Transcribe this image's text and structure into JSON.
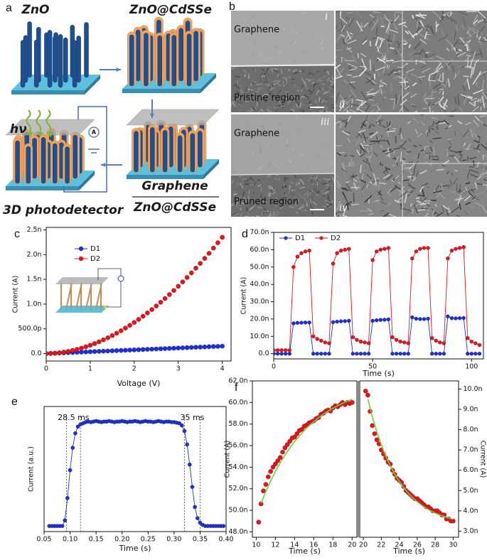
{
  "figure_a": {
    "panel": "a",
    "zno": "ZnO",
    "zno_cdsse": "ZnO@CdSSe",
    "hv": "hν",
    "ammeter": "A",
    "device": "3D photodetector",
    "graphene": "Graphene",
    "composite": "ZnO@CdSSe"
  },
  "figure_b": {
    "panel": "b",
    "top_left": {
      "layer": "Graphene",
      "index": "i",
      "region": "Pristine region"
    },
    "top_right": {
      "index": "ii"
    },
    "bottom_left": {
      "layer": "Graphene",
      "index": "iii",
      "region": "Pruned region"
    },
    "bottom_right": {
      "index": "iv"
    }
  },
  "chart_data": [
    {
      "panel": "c",
      "type": "line",
      "xlabel": "Voltage (V)",
      "ylabel": "Current (A)",
      "legend": "upper left",
      "legend_layout": "vertical",
      "xlim": [
        0,
        4.2
      ],
      "ylim": [
        -1.5e-10,
        2.55e-09
      ],
      "xticks": [
        0,
        1,
        2,
        3,
        4
      ],
      "yticks": [
        {
          "value": 0,
          "label": "0.0"
        },
        {
          "value": 5e-10,
          "label": "500.0p"
        },
        {
          "value": 1e-09,
          "label": "1.0n"
        },
        {
          "value": 1.5e-09,
          "label": "1.5n"
        },
        {
          "value": 2e-09,
          "label": "2.0n"
        },
        {
          "value": 2.5e-09,
          "label": "2.5n"
        }
      ],
      "x": [
        0,
        0.1,
        0.2,
        0.3,
        0.4,
        0.5,
        0.6,
        0.7,
        0.8,
        0.9,
        1,
        1.1,
        1.2,
        1.3,
        1.4,
        1.5,
        1.6,
        1.7,
        1.8,
        1.9,
        2,
        2.1,
        2.2,
        2.3,
        2.4,
        2.5,
        2.6,
        2.7,
        2.8,
        2.9,
        3,
        3.1,
        3.2,
        3.3,
        3.4,
        3.5,
        3.6,
        3.7,
        3.8,
        3.9,
        4
      ],
      "series": [
        {
          "name": "D1",
          "color": "#1f2fd6",
          "style": "markers",
          "values": [
            0,
            3.75e-12,
            7.5e-12,
            1.13e-11,
            1.5e-11,
            1.88e-11,
            2.25e-11,
            2.63e-11,
            3e-11,
            3.38e-11,
            3.75e-11,
            4.13e-11,
            4.5e-11,
            4.88e-11,
            5.25e-11,
            5.63e-11,
            6e-11,
            6.38e-11,
            6.75e-11,
            7.13e-11,
            7.5e-11,
            7.88e-11,
            8.25e-11,
            8.63e-11,
            9e-11,
            9.38e-11,
            9.75e-11,
            1.01e-10,
            1.05e-10,
            1.09e-10,
            1.13e-10,
            1.16e-10,
            1.2e-10,
            1.24e-10,
            1.28e-10,
            1.31e-10,
            1.35e-10,
            1.39e-10,
            1.43e-10,
            1.46e-10,
            1.5e-10
          ]
        },
        {
          "name": "D2",
          "color": "#e3141a",
          "style": "markers",
          "values": [
            0,
            2.1e-12,
            7.9e-12,
            1.71e-11,
            2.96e-11,
            4.52e-11,
            6.39e-11,
            8.56e-11,
            1.1e-10,
            1.38e-10,
            1.69e-10,
            2.02e-10,
            2.38e-10,
            2.78e-10,
            3.2e-10,
            3.64e-10,
            4.12e-10,
            4.62e-10,
            5.15e-10,
            5.71e-10,
            6.3e-10,
            6.91e-10,
            7.55e-10,
            8.22e-10,
            8.9e-10,
            9.62e-10,
            1.037e-09,
            1.113e-09,
            1.193e-09,
            1.276e-09,
            1.36e-09,
            1.448e-09,
            1.538e-09,
            1.631e-09,
            1.726e-09,
            1.823e-09,
            1.924e-09,
            2.026e-09,
            2.132e-09,
            2.24e-09,
            2.35e-09
          ]
        }
      ]
    },
    {
      "panel": "d",
      "type": "line",
      "xlabel": "Time (s)",
      "ylabel": "Current (A)",
      "legend": "upper left",
      "legend_layout": "horizontal",
      "xlim": [
        0,
        106
      ],
      "ylim": [
        -3e-09,
        7e-08
      ],
      "xticks": [
        0,
        50,
        100
      ],
      "yticks": [
        {
          "value": 0,
          "label": "0.0"
        },
        {
          "value": 1e-08,
          "label": "10.0n"
        },
        {
          "value": 2e-08,
          "label": "20.0n"
        },
        {
          "value": 3e-08,
          "label": "30.0n"
        },
        {
          "value": 4e-08,
          "label": "40.0n"
        },
        {
          "value": 5e-08,
          "label": "50.0n"
        },
        {
          "value": 6e-08,
          "label": "60.0n"
        },
        {
          "value": 7e-08,
          "label": "70.0n"
        }
      ],
      "x": [
        0,
        2,
        4,
        6,
        8,
        10,
        12,
        14,
        16,
        18,
        20,
        22,
        24,
        26,
        28,
        30,
        32,
        34,
        36,
        38,
        40,
        42,
        44,
        46,
        48,
        50,
        52,
        54,
        56,
        58,
        60,
        62,
        64,
        66,
        68,
        70,
        72,
        74,
        76,
        78,
        80,
        82,
        84,
        86,
        88,
        90,
        92,
        94,
        96,
        98,
        100,
        102,
        104
      ],
      "series": [
        {
          "name": "D1",
          "color": "#1f2fd6",
          "style": "line+markers",
          "values": [
            0,
            0,
            0,
            0,
            0,
            1.75e-08,
            1.78e-08,
            1.79e-08,
            1.8e-08,
            1.8e-08,
            0,
            0,
            0,
            0,
            0,
            1.82e-08,
            1.85e-08,
            1.87e-08,
            1.88e-08,
            1.9e-08,
            0,
            0,
            0,
            0,
            0,
            1.9e-08,
            1.93e-08,
            1.95e-08,
            1.96e-08,
            1.98e-08,
            0,
            0,
            0,
            0,
            0,
            2.1e-08,
            2.02e-08,
            2e-08,
            2e-08,
            2.02e-08,
            0,
            0,
            0,
            0,
            2.15e-08,
            2.05e-08,
            2.04e-08,
            2.05e-08,
            2.06e-08,
            0,
            0,
            0,
            0
          ]
        },
        {
          "name": "D2",
          "color": "#e3141a",
          "style": "line+markers",
          "values": [
            2e-09,
            2e-09,
            2e-09,
            2e-09,
            2e-09,
            5e-08,
            5.6e-08,
            5.8e-08,
            5.9e-08,
            5.95e-08,
            1e-08,
            8.5e-09,
            7.5e-09,
            6.5e-09,
            6e-09,
            5.2e-08,
            5.8e-08,
            5.95e-08,
            6e-08,
            6.05e-08,
            9.5e-09,
            8e-09,
            7e-09,
            6.5e-09,
            6e-09,
            5.4e-08,
            5.9e-08,
            6e-08,
            6.05e-08,
            6.1e-08,
            9.5e-09,
            8e-09,
            7e-09,
            6.5e-09,
            6e-09,
            5.5e-08,
            5.9e-08,
            6.05e-08,
            6.1e-08,
            6.1e-08,
            9e-09,
            7.5e-09,
            6.5e-09,
            6e-09,
            5.5e-08,
            5.95e-08,
            6.05e-08,
            6.1e-08,
            6.15e-08,
            9e-09,
            7e-09,
            6e-09,
            5e-09
          ]
        }
      ]
    },
    {
      "panel": "e",
      "type": "line",
      "xlabel": "Time (s)",
      "ylabel": "Current (a.u.)",
      "xlim": [
        0.05,
        0.4
      ],
      "ylim": [
        0,
        1.12
      ],
      "xticks": [
        0.05,
        {
          "value": 0.1,
          "label": "0.10"
        },
        0.15,
        {
          "value": 0.2,
          "label": "0.20"
        },
        0.25,
        {
          "value": 0.3,
          "label": "0.30"
        },
        0.35,
        {
          "value": 0.4,
          "label": "0.40"
        }
      ],
      "vlines": [
        0.093,
        0.12,
        0.32,
        0.35
      ],
      "annotations": [
        "28.5 ms",
        "35 ms"
      ],
      "x": [
        0.06,
        0.065,
        0.07,
        0.075,
        0.08,
        0.085,
        0.09,
        0.095,
        0.1,
        0.105,
        0.11,
        0.115,
        0.12,
        0.125,
        0.13,
        0.135,
        0.14,
        0.145,
        0.15,
        0.155,
        0.16,
        0.165,
        0.17,
        0.175,
        0.18,
        0.185,
        0.19,
        0.195,
        0.2,
        0.205,
        0.21,
        0.215,
        0.22,
        0.225,
        0.23,
        0.235,
        0.24,
        0.245,
        0.25,
        0.255,
        0.26,
        0.265,
        0.27,
        0.275,
        0.28,
        0.285,
        0.29,
        0.295,
        0.3,
        0.305,
        0.31,
        0.315,
        0.32,
        0.325,
        0.33,
        0.335,
        0.34,
        0.345,
        0.35,
        0.355,
        0.36,
        0.365,
        0.37,
        0.375,
        0.38,
        0.385,
        0.39,
        0.395
      ],
      "series": [
        {
          "color": "#2030d0",
          "style": "line+markers",
          "values": [
            0.05,
            0.05,
            0.05,
            0.05,
            0.05,
            0.05,
            0.1,
            0.3,
            0.55,
            0.75,
            0.88,
            0.94,
            0.96,
            0.97,
            0.98,
            0.985,
            0.98,
            0.985,
            0.99,
            0.985,
            0.98,
            0.985,
            0.985,
            0.99,
            0.985,
            0.98,
            0.985,
            0.985,
            0.99,
            0.985,
            0.98,
            0.985,
            0.985,
            0.99,
            0.985,
            0.98,
            0.985,
            0.99,
            0.985,
            0.985,
            0.98,
            0.985,
            0.99,
            0.985,
            0.98,
            0.985,
            0.985,
            0.98,
            0.98,
            0.975,
            0.97,
            0.95,
            0.9,
            0.78,
            0.6,
            0.4,
            0.22,
            0.12,
            0.08,
            0.06,
            0.05,
            0.05,
            0.05,
            0.05,
            0.05,
            0.05,
            0.05,
            0.05
          ]
        }
      ]
    },
    {
      "panel": "f",
      "type": "scatter",
      "xlabel": "Time (s)",
      "ylabel": "Current (A)",
      "y_axis_side": "left",
      "xlim": [
        9.6,
        20.5
      ],
      "ylim": [
        4.75e-08,
        6.2e-08
      ],
      "xticks": [
        10,
        12,
        14,
        16,
        18,
        20
      ],
      "yticks": [
        {
          "value": 4.8e-08,
          "label": "48.0n"
        },
        {
          "value": 5e-08,
          "label": "50.0n"
        },
        {
          "value": 5.2e-08,
          "label": "52.0n"
        },
        {
          "value": 5.4e-08,
          "label": "54.0n"
        },
        {
          "value": 5.6e-08,
          "label": "56.0n"
        },
        {
          "value": 5.8e-08,
          "label": "58.0n"
        },
        {
          "value": 6e-08,
          "label": "60.0n"
        },
        {
          "value": 6.2e-08,
          "label": "62.0n"
        }
      ],
      "series": [
        {
          "color": "#e3141a",
          "style": "markers",
          "x": [
            10.25,
            10.5,
            10.75,
            11,
            11.25,
            11.5,
            11.75,
            12,
            12.25,
            12.5,
            12.75,
            13,
            13.25,
            13.5,
            13.75,
            14,
            14.25,
            14.5,
            14.75,
            15,
            15.25,
            15.5,
            15.75,
            16,
            16.25,
            16.5,
            16.75,
            17,
            17.25,
            17.5,
            17.75,
            18,
            18.25,
            18.5,
            18.75,
            19,
            19.25,
            19.5,
            19.75,
            20
          ],
          "values": [
            4.89e-08,
            5.06e-08,
            5.18e-08,
            5.24e-08,
            5.31e-08,
            5.36e-08,
            5.4e-08,
            5.43e-08,
            5.46e-08,
            5.49e-08,
            5.54e-08,
            5.58e-08,
            5.61e-08,
            5.64e-08,
            5.67e-08,
            5.68e-08,
            5.71e-08,
            5.74e-08,
            5.75e-08,
            5.78e-08,
            5.79e-08,
            5.81e-08,
            5.82e-08,
            5.83e-08,
            5.85e-08,
            5.86e-08,
            5.89e-08,
            5.9e-08,
            5.92e-08,
            5.93e-08,
            5.92e-08,
            5.95e-08,
            5.97e-08,
            5.96e-08,
            5.98e-08,
            6e-08,
            5.98e-08,
            6e-08,
            5.99e-08,
            6e-08
          ]
        },
        {
          "color": "#6cd33a",
          "style": "line",
          "x": [
            10.5,
            11,
            11.5,
            12,
            12.5,
            13,
            13.5,
            14,
            14.5,
            15,
            15.5,
            16,
            16.5,
            17,
            17.5,
            18,
            18.5,
            19,
            19.5,
            20
          ],
          "values": [
            5.066e-08,
            5.174e-08,
            5.271e-08,
            5.36e-08,
            5.44e-08,
            5.512e-08,
            5.578e-08,
            5.637e-08,
            5.69e-08,
            5.739e-08,
            5.783e-08,
            5.822e-08,
            5.859e-08,
            5.891e-08,
            5.92e-08,
            5.947e-08,
            5.971e-08,
            5.992e-08,
            6.012e-08,
            6.03e-08
          ]
        }
      ]
    },
    {
      "type": "scatter",
      "xlabel": "Time (s)",
      "ylabel": "Current (A)",
      "y_axis_side": "right",
      "xlim": [
        19.6,
        30.6
      ],
      "ylim": [
        2.7e-09,
        1.04e-08
      ],
      "xticks": [
        20,
        22,
        24,
        26,
        28,
        30
      ],
      "yticks": [
        {
          "value": 3e-09,
          "label": "3.0n"
        },
        {
          "value": 4e-09,
          "label": "4.0n"
        },
        {
          "value": 5e-09,
          "label": "5.0n"
        },
        {
          "value": 6e-09,
          "label": "6.0n"
        },
        {
          "value": 7e-09,
          "label": "7.0n"
        },
        {
          "value": 8e-09,
          "label": "8.0n"
        },
        {
          "value": 9e-09,
          "label": "9.0n"
        },
        {
          "value": 1e-08,
          "label": "10.0n"
        }
      ],
      "series": [
        {
          "color": "#e3141a",
          "style": "markers",
          "x": [
            20.25,
            20.5,
            20.75,
            21,
            21.25,
            21.5,
            21.75,
            22,
            22.25,
            22.5,
            22.75,
            23,
            23.25,
            23.5,
            23.75,
            24,
            24.25,
            24.5,
            24.75,
            25,
            25.25,
            25.5,
            25.75,
            26,
            26.25,
            26.5,
            26.75,
            27,
            27.25,
            27.5,
            27.75,
            28,
            28.25,
            28.5,
            28.75,
            29,
            29.25,
            29.5,
            29.75,
            30
          ],
          "values": [
            9.9e-09,
            9.7e-09,
            8.9e-09,
            8.2e-09,
            7.8e-09,
            7.5e-09,
            7.3e-09,
            7e-09,
            6.8e-09,
            6.6e-09,
            6.4e-09,
            6.3e-09,
            6e-09,
            5.8e-09,
            5.6e-09,
            5.5e-09,
            5.4e-09,
            5.2e-09,
            5e-09,
            4.9e-09,
            4.8e-09,
            4.7e-09,
            4.6e-09,
            4.6e-09,
            4.5e-09,
            4.4e-09,
            4.3e-09,
            4.2e-09,
            4.2e-09,
            4.1e-09,
            4e-09,
            4e-09,
            4e-09,
            3.9e-09,
            3.8e-09,
            3.8e-09,
            3.6e-09,
            3.6e-09,
            3.5e-09,
            3.5e-09
          ]
        },
        {
          "color": "#6cd33a",
          "style": "line",
          "x": [
            20.5,
            21,
            21.5,
            22,
            22.5,
            23,
            23.5,
            24,
            24.5,
            25,
            25.5,
            26,
            26.5,
            27,
            27.5,
            28,
            28.5,
            29,
            29.5,
            30
          ],
          "values": [
            9.5e-09,
            8.64e-09,
            7.89e-09,
            7.25e-09,
            6.7e-09,
            6.22e-09,
            5.81e-09,
            5.45e-09,
            5.14e-09,
            4.88e-09,
            4.65e-09,
            4.45e-09,
            4.28e-09,
            4.13e-09,
            4e-09,
            3.89e-09,
            3.8e-09,
            3.72e-09,
            3.65e-09,
            3.58e-09
          ]
        }
      ]
    }
  ]
}
